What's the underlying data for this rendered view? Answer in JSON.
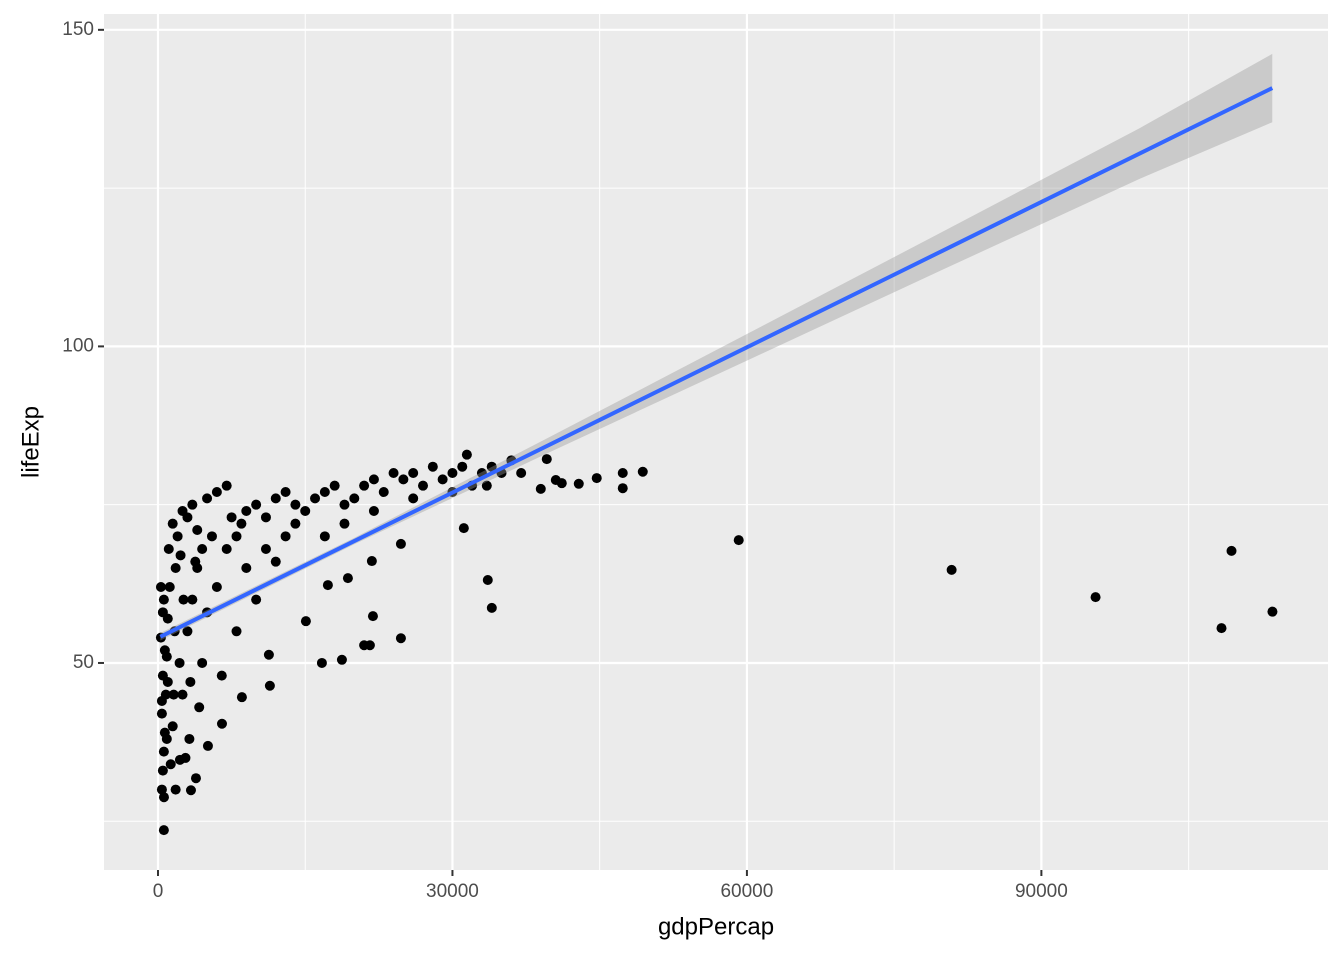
{
  "chart_data": {
    "type": "scatter",
    "x_label": "gdpPercap",
    "y_label": "lifeExp",
    "xlim": [
      -5500,
      119200
    ],
    "ylim": [
      17.3,
      152.5
    ],
    "xticks": [
      0,
      30000,
      60000,
      90000
    ],
    "yticks": [
      50,
      100,
      150
    ],
    "xminorticks": [
      15000,
      45000,
      75000,
      105000
    ],
    "yminorticks": [
      25,
      75,
      125
    ],
    "grid": true,
    "color": "#000000",
    "x": [
      400,
      500,
      600,
      700,
      400,
      800,
      500,
      900,
      300,
      1000,
      600,
      1200,
      400,
      1500,
      1800,
      1100,
      2000,
      1500,
      2500,
      3000,
      3500,
      4000,
      5000,
      6000,
      7000,
      2200,
      2500,
      3000,
      3500,
      4000,
      4500,
      5000,
      6000,
      7000,
      8000,
      8500,
      9000,
      10000,
      11000,
      12000,
      13000,
      14000,
      15000,
      16000,
      17000,
      18000,
      19000,
      20000,
      21000,
      22000,
      23000,
      24000,
      25000,
      26000,
      27000,
      28000,
      29000,
      30000,
      31000,
      32000,
      33000,
      34000,
      35000,
      36000,
      37000,
      2800,
      3200,
      1800,
      1300,
      900,
      2600,
      1700,
      6500,
      9000,
      12000,
      10000,
      13000,
      7500,
      5500,
      4500,
      3800,
      2300,
      1600,
      1000,
      700,
      3300,
      4200,
      8000,
      11000,
      14000,
      17000,
      19000,
      22000,
      26000,
      30000,
      33500,
      500,
      300,
      600,
      49390,
      47350,
      47350,
      44700,
      42870,
      41140,
      40530,
      39000,
      39610,
      33600,
      34010,
      31160,
      31470,
      24750,
      24750,
      21790,
      21900,
      21590,
      21000,
      18740,
      16700,
      19350,
      17310,
      15070,
      11400,
      11300,
      8550,
      6520,
      5090,
      3870,
      3360,
      610,
      2240,
      59165,
      80855,
      95520,
      108350,
      109370,
      113540
    ],
    "y": [
      30,
      33,
      36,
      39,
      42,
      45,
      48,
      51,
      54,
      57,
      60,
      62,
      44,
      40,
      65,
      68,
      70,
      72,
      74,
      73,
      75,
      71,
      76,
      77,
      78,
      50,
      45,
      55,
      60,
      65,
      50,
      58,
      62,
      68,
      70,
      72,
      74,
      75,
      73,
      76,
      77,
      75,
      74,
      76,
      77,
      78,
      75,
      76,
      78,
      79,
      77,
      80,
      79,
      80,
      78,
      81,
      79,
      80,
      81,
      78,
      80,
      81,
      80,
      82,
      80,
      35,
      38,
      30,
      34,
      38,
      60,
      55,
      48,
      65,
      66,
      60,
      70,
      73,
      70,
      68,
      66,
      67,
      45,
      47,
      52,
      47,
      43,
      55,
      68,
      72,
      70,
      72,
      74,
      76,
      77,
      78,
      58,
      62,
      23.6,
      80.2,
      80.0,
      77.6,
      79.2,
      78.3,
      78.4,
      78.9,
      77.5,
      82.2,
      63.1,
      58.7,
      71.3,
      82.9,
      53.9,
      68.8,
      66.1,
      57.4,
      52.8,
      52.8,
      50.5,
      50.0,
      63.4,
      62.3,
      56.6,
      46.4,
      51.3,
      44.6,
      40.4,
      36.9,
      31.8,
      29.9,
      28.8,
      34.7,
      69.4,
      64.7,
      60.4,
      55.5,
      67.7,
      58.1
    ],
    "fit": {
      "color": "#3366FF",
      "band_color": "#999999",
      "x": [
        241,
        20000,
        40000,
        60000,
        80000,
        100000,
        113523
      ],
      "y": [
        54.14,
        69.26,
        84.56,
        99.86,
        115.16,
        130.46,
        140.8
      ],
      "lower": [
        53.54,
        68.76,
        83.36,
        97.76,
        112.16,
        126.46,
        135.4
      ],
      "upper": [
        54.74,
        69.76,
        85.76,
        101.96,
        118.16,
        134.46,
        146.2
      ]
    }
  }
}
